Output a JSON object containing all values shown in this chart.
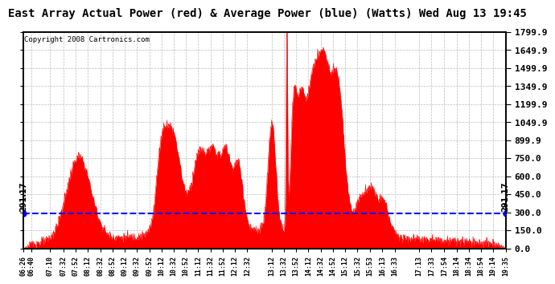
{
  "title": "East Array Actual Power (red) & Average Power (blue) (Watts) Wed Aug 13 19:45",
  "copyright": "Copyright 2008 Cartronics.com",
  "avg_power": 291.17,
  "y_ticks": [
    0.0,
    150.0,
    300.0,
    450.0,
    600.0,
    750.0,
    899.9,
    1049.9,
    1199.9,
    1349.9,
    1499.9,
    1649.9,
    1799.9
  ],
  "x_tick_labels": [
    "06:26",
    "06:40",
    "07:10",
    "07:32",
    "07:52",
    "08:12",
    "08:32",
    "08:52",
    "09:12",
    "09:32",
    "09:52",
    "10:12",
    "10:32",
    "10:52",
    "11:12",
    "11:32",
    "11:52",
    "12:12",
    "12:32",
    "13:12",
    "13:32",
    "13:52",
    "14:12",
    "14:32",
    "14:52",
    "15:12",
    "15:32",
    "15:53",
    "16:13",
    "16:33",
    "17:13",
    "17:33",
    "17:54",
    "18:14",
    "18:34",
    "18:54",
    "19:14",
    "19:35"
  ],
  "line_color": "#0000FF",
  "fill_color": "#FF0000",
  "bg_color": "#FFFFFF",
  "grid_color": "#BBBBBB",
  "title_fontsize": 10,
  "copyright_fontsize": 6.5
}
